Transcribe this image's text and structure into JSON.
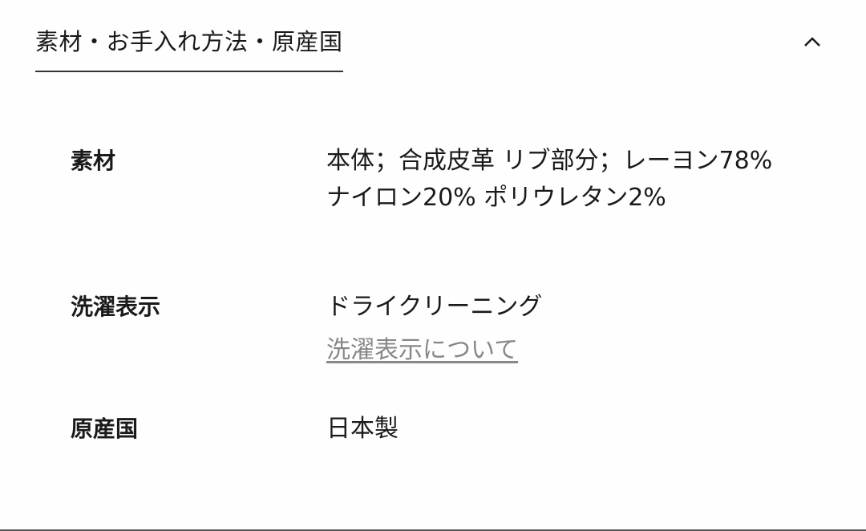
{
  "section": {
    "title": "素材・お手入れ方法・原産国",
    "toggle_icon": "chevron-up-icon"
  },
  "rows": [
    {
      "label": "素材",
      "value": "本体；合成皮革 リブ部分；レーヨン78% ナイロン20% ポリウレタン2%"
    },
    {
      "label": "洗濯表示",
      "value": "ドライクリーニング",
      "link": "洗濯表示について"
    },
    {
      "label": "原産国",
      "value": "日本製"
    }
  ]
}
